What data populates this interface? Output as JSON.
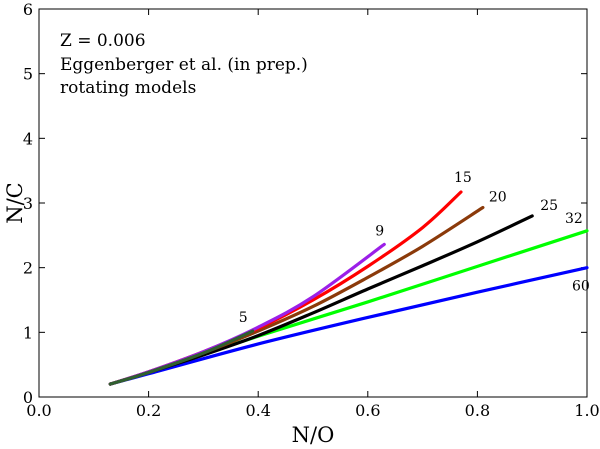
{
  "chart_data": {
    "type": "line",
    "title": "",
    "xlabel": "N/O",
    "ylabel": "N/C",
    "xlim": [
      0.0,
      1.0
    ],
    "ylim": [
      0,
      6
    ],
    "xticks": [
      0.0,
      0.2,
      0.4,
      0.6,
      0.8,
      1.0
    ],
    "xtick_labels": [
      "0.0",
      "0.2",
      "0.4",
      "0.6",
      "0.8",
      "1.0"
    ],
    "yticks": [
      0,
      1,
      2,
      3,
      4,
      5,
      6
    ],
    "ytick_labels": [
      "0",
      "1",
      "2",
      "3",
      "4",
      "5",
      "6"
    ],
    "grid": false,
    "annotations": {
      "metallicity": "Z = 0.006",
      "source": "Eggenberger et al. (in prep.)",
      "note": "rotating models"
    },
    "series": [
      {
        "name": "60",
        "color": "#0000ff",
        "x": [
          0.13,
          0.2,
          0.4,
          0.6,
          0.8,
          1.0
        ],
        "y": [
          0.2,
          0.36,
          0.82,
          1.23,
          1.62,
          2.0
        ]
      },
      {
        "name": "32",
        "color": "#00ff00",
        "x": [
          0.13,
          0.2,
          0.4,
          0.6,
          0.8,
          1.0
        ],
        "y": [
          0.2,
          0.38,
          0.94,
          1.47,
          2.02,
          2.57
        ]
      },
      {
        "name": "25",
        "color": "#000000",
        "x": [
          0.13,
          0.2,
          0.3,
          0.4,
          0.5,
          0.6,
          0.7,
          0.8,
          0.9
        ],
        "y": [
          0.2,
          0.38,
          0.65,
          0.95,
          1.3,
          1.67,
          2.03,
          2.4,
          2.8
        ]
      },
      {
        "name": "20",
        "color": "#8b3a0a",
        "x": [
          0.13,
          0.2,
          0.3,
          0.4,
          0.5,
          0.6,
          0.7,
          0.81
        ],
        "y": [
          0.2,
          0.38,
          0.68,
          1.02,
          1.4,
          1.85,
          2.33,
          2.93
        ]
      },
      {
        "name": "15",
        "color": "#ff0000",
        "x": [
          0.13,
          0.2,
          0.3,
          0.4,
          0.5,
          0.6,
          0.7,
          0.77
        ],
        "y": [
          0.2,
          0.39,
          0.7,
          1.06,
          1.5,
          2.02,
          2.62,
          3.17
        ]
      },
      {
        "name": "9",
        "color": "#9b1fe8",
        "x": [
          0.13,
          0.2,
          0.3,
          0.4,
          0.5,
          0.63
        ],
        "y": [
          0.2,
          0.39,
          0.7,
          1.08,
          1.55,
          2.36
        ]
      },
      {
        "name": "5",
        "color": "#2f5f2f",
        "x": [
          0.13,
          0.2,
          0.3,
          0.39
        ],
        "y": [
          0.2,
          0.38,
          0.68,
          1.02
        ]
      }
    ]
  }
}
